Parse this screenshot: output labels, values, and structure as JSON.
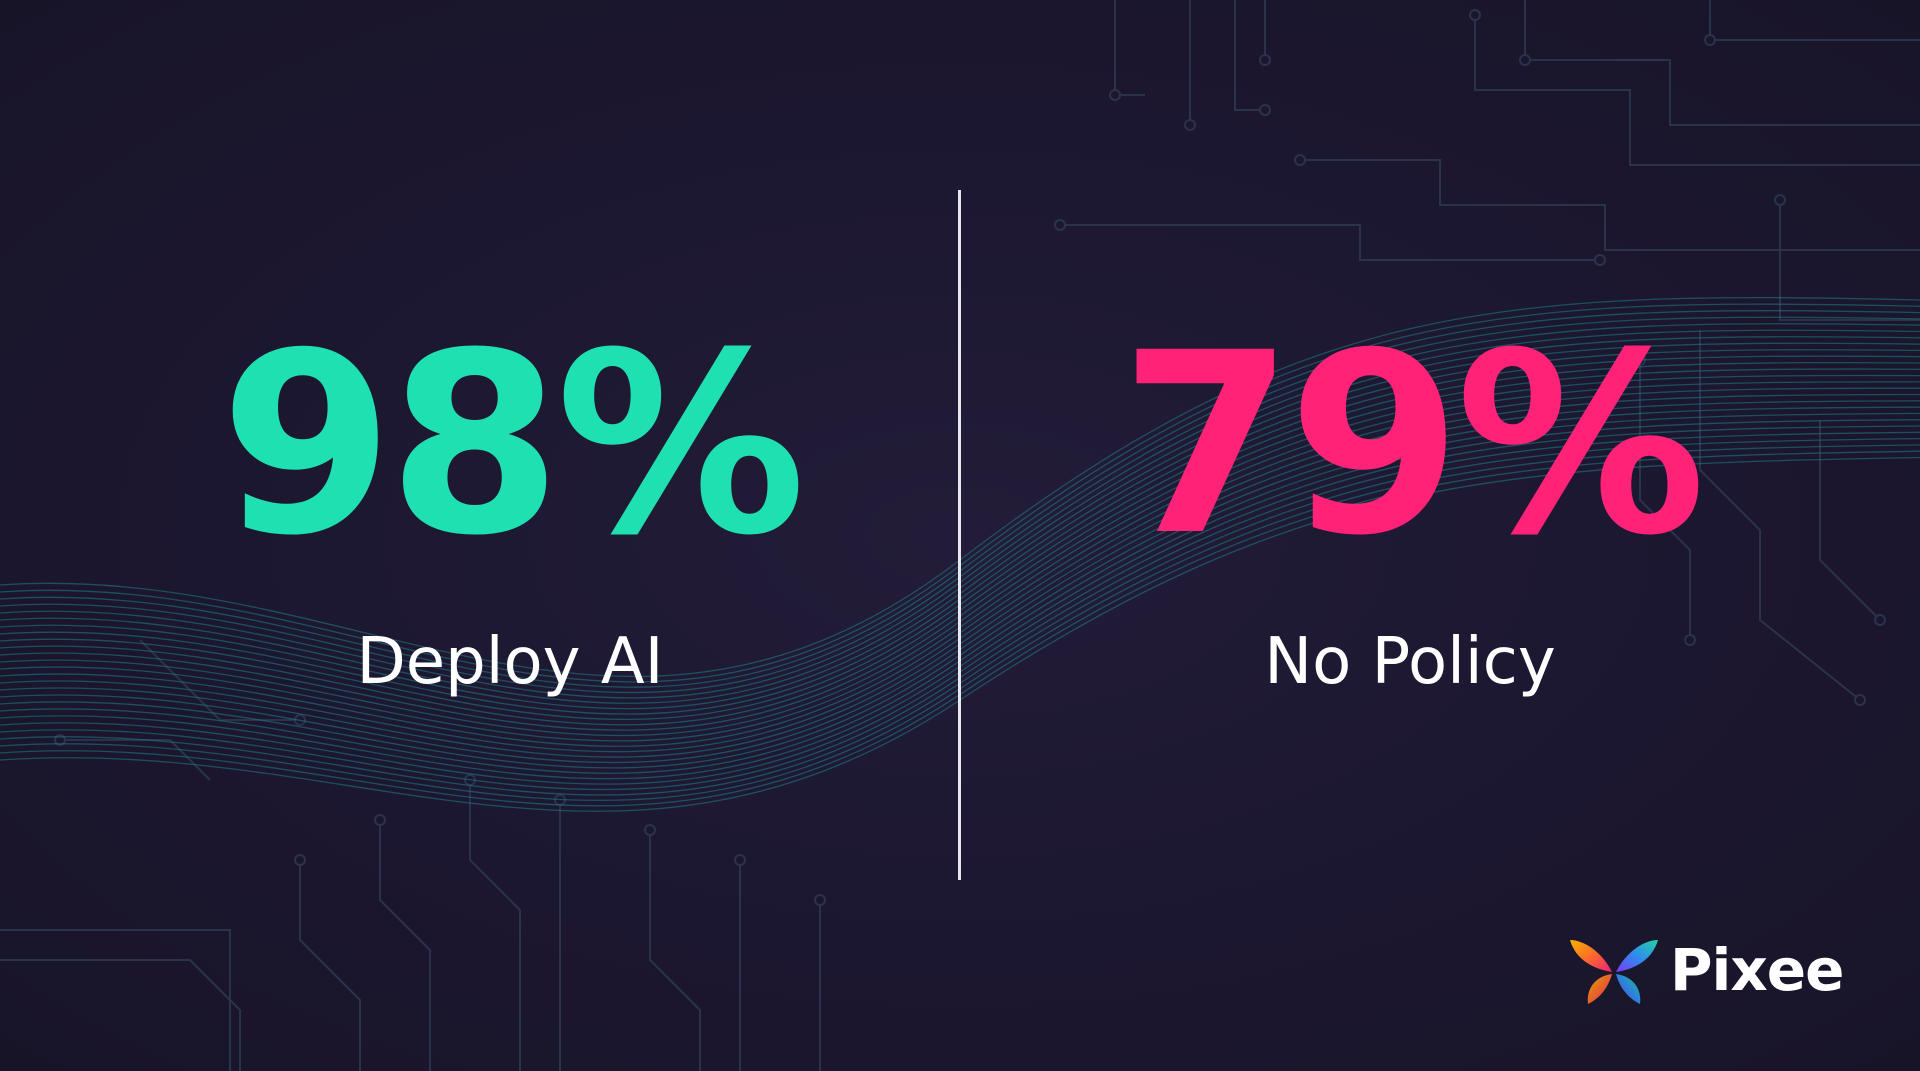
{
  "stats": [
    {
      "value": "98%",
      "label": "Deploy AI",
      "color": "#1fe0b0"
    },
    {
      "value": "79%",
      "label": "No Policy",
      "color": "#ff2277"
    }
  ],
  "brand": {
    "name": "Pixee",
    "logo_icon": "butterfly-logo-icon"
  },
  "colors": {
    "background": "#1c1730",
    "circuit_lines": "#2f3d55",
    "wave_lines": "#1f7f86",
    "divider": "#e8e6ee"
  }
}
